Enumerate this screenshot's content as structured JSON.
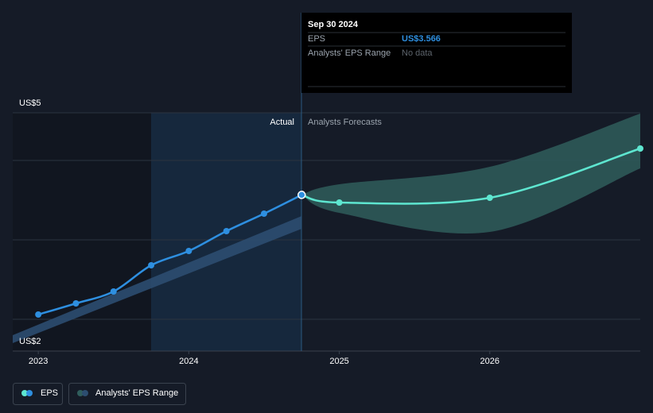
{
  "tooltip": {
    "date": "Sep 30 2024",
    "rows": [
      {
        "label": "EPS",
        "value": "US$3.566"
      },
      {
        "label": "Analysts' EPS Range",
        "value": "No data"
      }
    ]
  },
  "chart_data": {
    "type": "line",
    "y_labels": [
      "US$5",
      "US$2"
    ],
    "annotations": [
      "Actual",
      "Analysts Forecasts"
    ],
    "xlim": [
      2022.83,
      2027.0
    ],
    "xticks": [
      {
        "value": 2023,
        "label": "2023"
      },
      {
        "value": 2024,
        "label": "2024"
      },
      {
        "value": 2025,
        "label": "2025"
      },
      {
        "value": 2026,
        "label": "2026"
      }
    ],
    "ylim": [
      1.6,
      4.6
    ],
    "yticks": [
      2,
      3,
      4
    ],
    "grid": true,
    "series": [
      {
        "name": "EPS",
        "color": "#2e8fe0",
        "forecast_color": "#5ee6d0",
        "x": [
          2023.0,
          2023.25,
          2023.5,
          2023.75,
          2024.0,
          2024.25,
          2024.5,
          2024.75
        ],
        "values": [
          2.06,
          2.2,
          2.35,
          2.68,
          2.86,
          3.11,
          3.33,
          3.566
        ],
        "forecast_x": [
          2024.75,
          2025.0,
          2026.0,
          2027.0
        ],
        "forecast_values": [
          3.566,
          3.47,
          3.53,
          4.15
        ]
      },
      {
        "name": "Analysts' EPS Range",
        "color": "#2c4d70",
        "forecast_color": "#2f5d5c",
        "x": [
          2022.83,
          2024.75
        ],
        "low": [
          1.7,
          3.14
        ],
        "high": [
          1.8,
          3.3
        ],
        "forecast_x": [
          2024.75,
          2025.0,
          2026.0,
          2027.0
        ],
        "forecast_low": [
          3.566,
          3.34,
          3.1,
          3.9
        ],
        "forecast_high": [
          3.566,
          3.7,
          3.92,
          4.59
        ]
      }
    ]
  }
}
